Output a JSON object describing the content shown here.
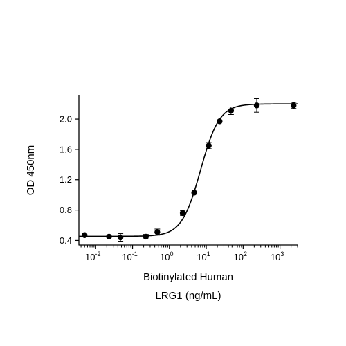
{
  "chart_data": {
    "type": "scatter",
    "xscale": "log",
    "xlabel_lines": [
      "Biotinylated Human",
      "LRG1 (ng/mL)"
    ],
    "ylabel": "OD 450nm",
    "xlim": [
      0.0035,
      3000
    ],
    "ylim": [
      0.34,
      2.32
    ],
    "xticks": [
      {
        "value": 0.01,
        "base": "10",
        "exp": "-2"
      },
      {
        "value": 0.1,
        "base": "10",
        "exp": "-1"
      },
      {
        "value": 1,
        "base": "10",
        "exp": "0"
      },
      {
        "value": 10,
        "base": "10",
        "exp": "1"
      },
      {
        "value": 100,
        "base": "10",
        "exp": "2"
      },
      {
        "value": 1000,
        "base": "10",
        "exp": "3"
      }
    ],
    "yticks": [
      {
        "value": 0.4,
        "label": "0.4"
      },
      {
        "value": 0.8,
        "label": "0.8"
      },
      {
        "value": 1.2,
        "label": "1.2"
      },
      {
        "value": 1.6,
        "label": "1.6"
      },
      {
        "value": 2.0,
        "label": "2.0"
      }
    ],
    "points": [
      {
        "x": 0.005,
        "y": 0.47,
        "err": 0.0
      },
      {
        "x": 0.023,
        "y": 0.45,
        "err": 0.0
      },
      {
        "x": 0.047,
        "y": 0.44,
        "err": 0.05
      },
      {
        "x": 0.23,
        "y": 0.45,
        "err": 0.03
      },
      {
        "x": 0.47,
        "y": 0.51,
        "err": 0.04
      },
      {
        "x": 2.3,
        "y": 0.76,
        "err": 0.03
      },
      {
        "x": 4.7,
        "y": 1.03,
        "err": 0.0
      },
      {
        "x": 11.7,
        "y": 1.65,
        "err": 0.04
      },
      {
        "x": 23,
        "y": 1.97,
        "err": 0.0
      },
      {
        "x": 47,
        "y": 2.11,
        "err": 0.05
      },
      {
        "x": 234,
        "y": 2.18,
        "err": 0.09
      },
      {
        "x": 2340,
        "y": 2.18,
        "err": 0.04
      }
    ],
    "fit": {
      "model": "4PL",
      "bottom": 0.455,
      "top": 2.2,
      "ec50": 7.0,
      "hill": 1.7
    },
    "colors": {
      "marker": "#000000",
      "line": "#000000",
      "axis": "#000000"
    }
  }
}
